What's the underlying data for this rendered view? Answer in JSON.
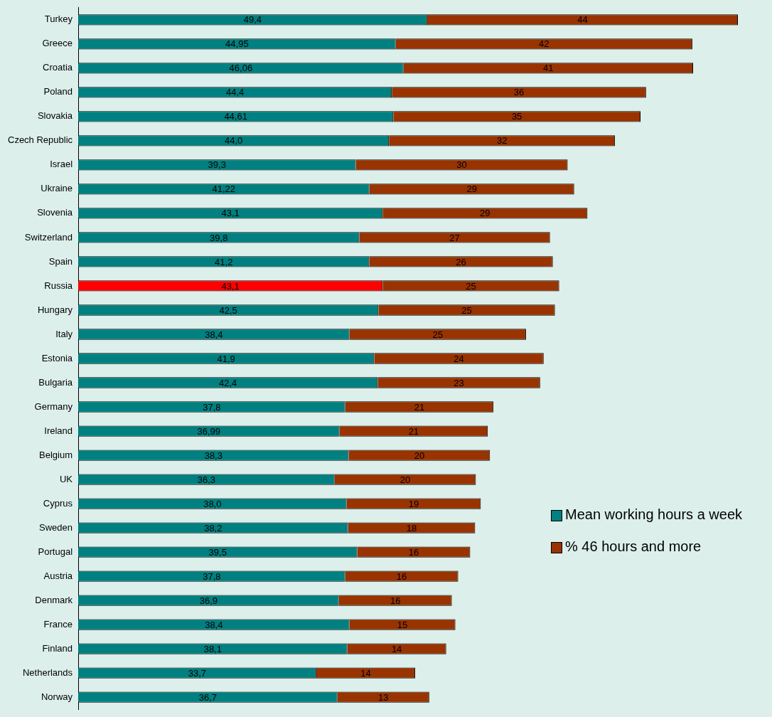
{
  "chart_data": {
    "type": "bar",
    "orientation": "horizontal",
    "stacked": true,
    "legend": "bottom right",
    "categories": [
      "Turkey",
      "Greece",
      "Croatia",
      "Poland",
      "Slovakia",
      "Czech Republic",
      "Israel",
      "Ukraine",
      "Slovenia",
      "Switzerland",
      "Spain",
      "Russia",
      "Hungary",
      "Italy",
      "Estonia",
      "Bulgaria",
      "Germany",
      "Ireland",
      "Belgium",
      "UK",
      "Cyprus",
      "Sweden",
      "Portugal",
      "Austria",
      "Denmark",
      "France",
      "Finland",
      "Netherlands",
      "Norway"
    ],
    "series": [
      {
        "name": "Mean working hours a week",
        "color": "#008080",
        "colors": [
          "#008080",
          "#008080",
          "#008080",
          "#008080",
          "#008080",
          "#008080",
          "#008080",
          "#008080",
          "#008080",
          "#008080",
          "#008080",
          "#ff0000",
          "#008080",
          "#008080",
          "#008080",
          "#008080",
          "#008080",
          "#008080",
          "#008080",
          "#008080",
          "#008080",
          "#008080",
          "#008080",
          "#008080",
          "#008080",
          "#008080",
          "#008080",
          "#008080",
          "#008080"
        ],
        "values": [
          49.4,
          44.95,
          46.06,
          44.4,
          44.61,
          44.0,
          39.3,
          41.22,
          43.1,
          39.8,
          41.2,
          43.1,
          42.5,
          38.4,
          41.9,
          42.4,
          37.8,
          36.99,
          38.3,
          36.3,
          38.0,
          38.2,
          39.5,
          37.8,
          36.9,
          38.4,
          38.1,
          33.7,
          36.7
        ],
        "value_labels": [
          "49,4",
          "44,95",
          "46,06",
          "44,4",
          "44,61",
          "44,0",
          "39,3",
          "41,22",
          "43,1",
          "39,8",
          "41,2",
          "43,1",
          "42,5",
          "38,4",
          "41,9",
          "42,4",
          "37,8",
          "36,99",
          "38,3",
          "36,3",
          "38,0",
          "38,2",
          "39,5",
          "37,8",
          "36,9",
          "38,4",
          "38,1",
          "33,7",
          "36,7"
        ]
      },
      {
        "name": "% 46 hours and more",
        "color": "#993300",
        "values": [
          44,
          42,
          41,
          36,
          35,
          32,
          30,
          29,
          29,
          27,
          26,
          25,
          25,
          25,
          24,
          23,
          21,
          21,
          20,
          20,
          19,
          18,
          16,
          16,
          16,
          15,
          14,
          14,
          13
        ],
        "value_labels": [
          "44",
          "42",
          "41",
          "36",
          "35",
          "32",
          "30",
          "29",
          "29",
          "27",
          "26",
          "25",
          "25",
          "25",
          "24",
          "23",
          "21",
          "21",
          "20",
          "20",
          "19",
          "18",
          "16",
          "16",
          "16",
          "15",
          "14",
          "14",
          "13"
        ]
      }
    ]
  }
}
